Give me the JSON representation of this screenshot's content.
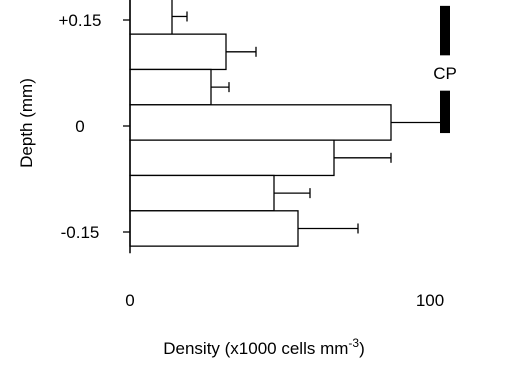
{
  "chart_data": {
    "type": "bar",
    "orientation": "horizontal",
    "ylabel": "Depth (mm)",
    "xlabel_main": "Density (x1000 cells mm",
    "xlabel_sup": "-3",
    "xlabel_close": ")",
    "xticks": [
      "0",
      "100"
    ],
    "yticks": [
      "+0.15",
      "0",
      "-0.15"
    ],
    "xlim": [
      0,
      130
    ],
    "ylim": [
      -0.18,
      0.18
    ],
    "bars": [
      {
        "depth_top": 0.18,
        "depth_bottom": 0.13,
        "value": 14,
        "error": 5
      },
      {
        "depth_top": 0.13,
        "depth_bottom": 0.08,
        "value": 32,
        "error": 10
      },
      {
        "depth_top": 0.08,
        "depth_bottom": 0.03,
        "value": 27,
        "error": 6
      },
      {
        "depth_top": 0.03,
        "depth_bottom": -0.02,
        "value": 87,
        "error": 18
      },
      {
        "depth_top": -0.02,
        "depth_bottom": -0.07,
        "value": 68,
        "error": 19
      },
      {
        "depth_top": -0.07,
        "depth_bottom": -0.12,
        "value": 48,
        "error": 12
      },
      {
        "depth_top": -0.12,
        "depth_bottom": -0.17,
        "value": 56,
        "error": 20
      }
    ],
    "annotation": {
      "label": "CP",
      "bar_upper": [
        0.17,
        0.1
      ],
      "bar_lower": [
        0.05,
        -0.01
      ],
      "x_value": 105
    },
    "grid": false
  }
}
